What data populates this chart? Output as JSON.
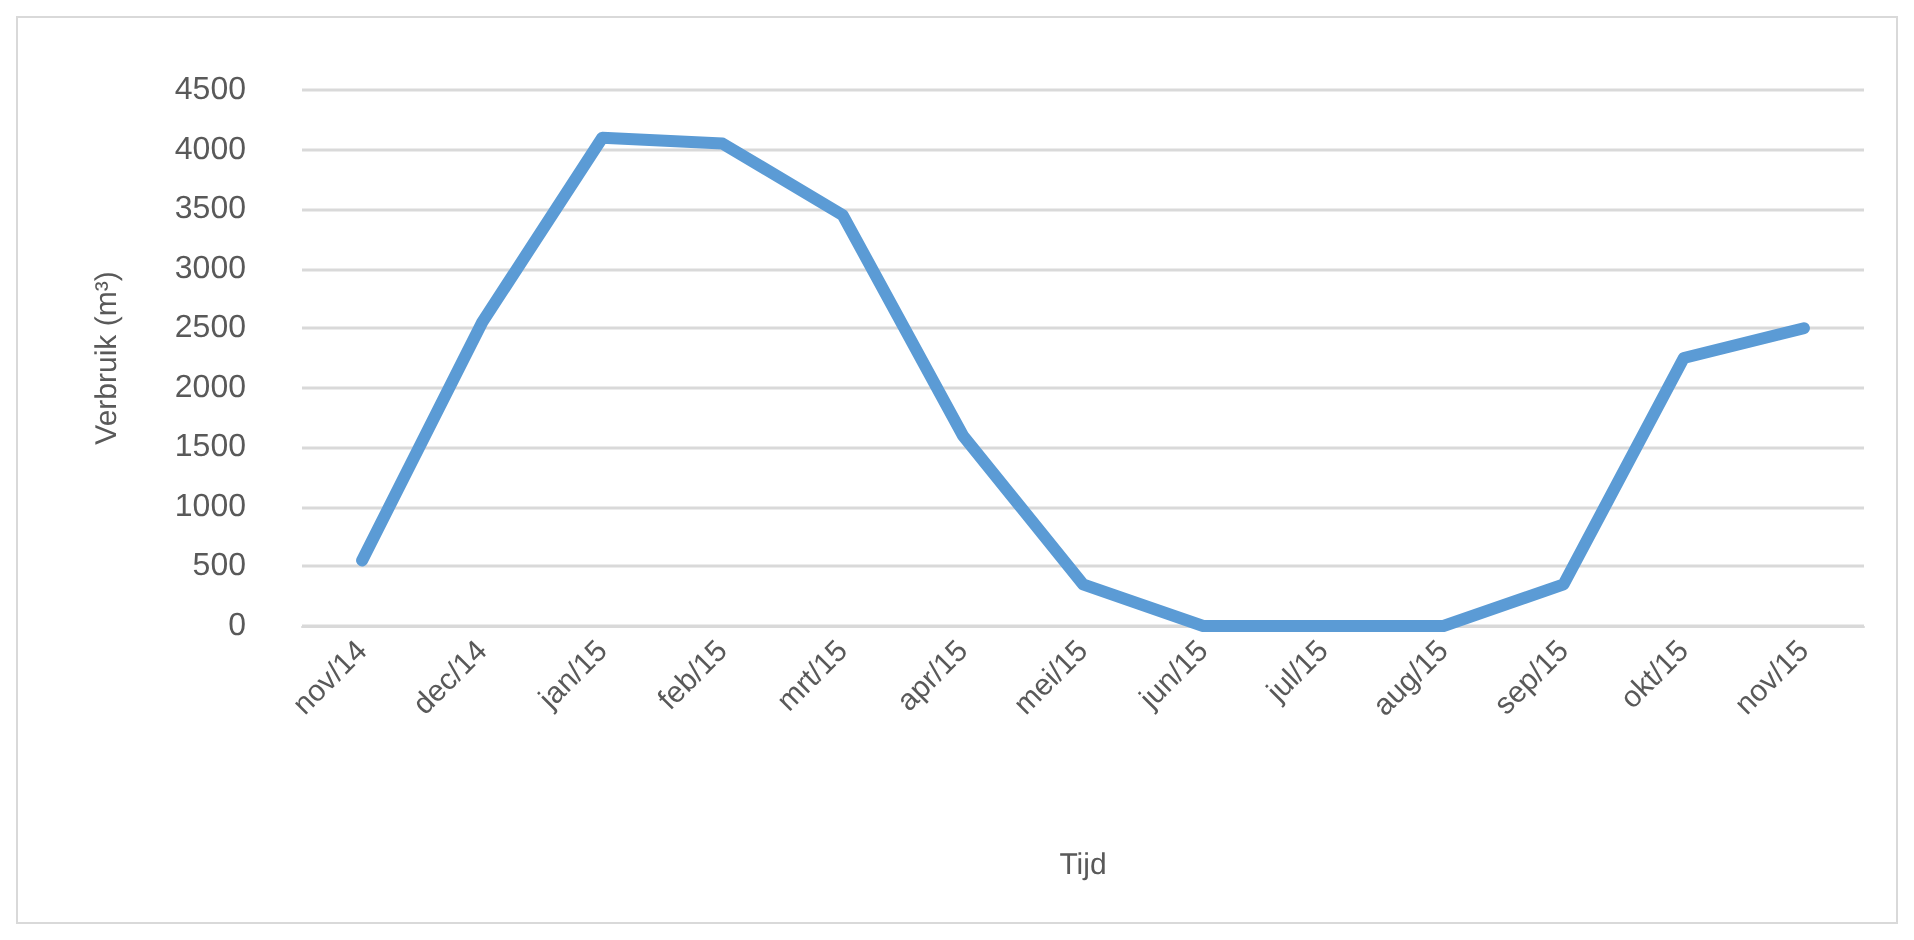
{
  "chart_data": {
    "type": "line",
    "xlabel": "Tijd",
    "ylabel": "Verbruik (m³)",
    "categories": [
      "nov/14",
      "dec/14",
      "jan/15",
      "feb/15",
      "mrt/15",
      "apr/15",
      "mei/15",
      "jun/15",
      "jul/15",
      "aug/15",
      "sep/15",
      "okt/15",
      "nov/15"
    ],
    "series": [
      {
        "color": "#5b9bd5",
        "values": [
          550,
          2550,
          4100,
          4050,
          3450,
          1600,
          350,
          0,
          0,
          0,
          350,
          2250,
          2500
        ]
      }
    ],
    "ylim": [
      0,
      4500
    ],
    "yticks": [
      0,
      500,
      1000,
      1500,
      2000,
      2500,
      3000,
      3500,
      4000,
      4500
    ],
    "grid": "y",
    "marker": "none",
    "line_style": "solid"
  }
}
